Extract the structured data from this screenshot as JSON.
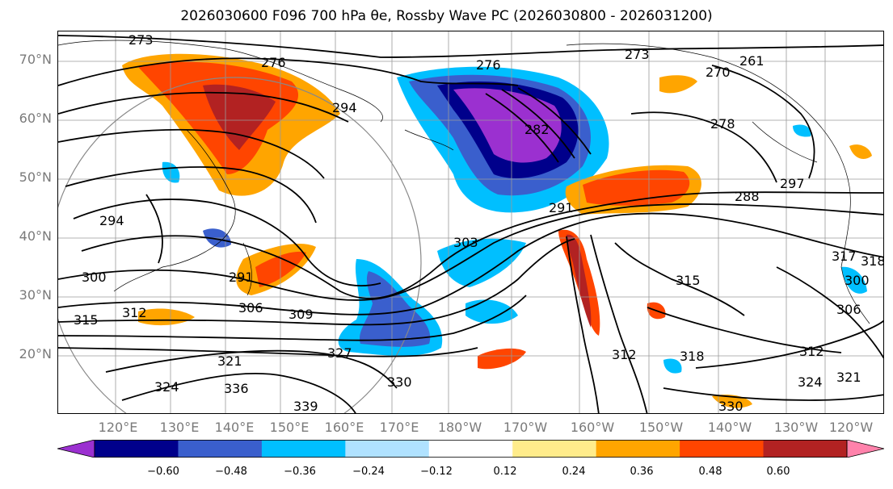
{
  "title": "2026030600 F096 700 hPa θe, Rossby Wave PC (2026030800 - 2026031200)",
  "lat_labels": [
    "70°N",
    "60°N",
    "50°N",
    "40°N",
    "30°N",
    "20°N"
  ],
  "lon_labels": [
    "120°E",
    "130°E",
    "140°E",
    "150°E",
    "160°E",
    "170°E",
    "180°W",
    "170°W",
    "160°W",
    "150°W",
    "140°W",
    "130°W",
    "120°W"
  ],
  "colorbar": {
    "colors": [
      "#9b30d0",
      "#00008b",
      "#3a5fcd",
      "#00bfff",
      "#b0e2ff",
      "#ffffff",
      "#ffec8b",
      "#ffa500",
      "#ff4500",
      "#b22222",
      "#ff82ab"
    ],
    "tick_labels": [
      "−0.60",
      "−0.48",
      "−0.36",
      "−0.24",
      "−0.12",
      "0.12",
      "0.24",
      "0.36",
      "0.48",
      "0.60"
    ]
  },
  "contour_labels": [
    "273",
    "276",
    "273",
    "270",
    "261",
    "294",
    "282",
    "276",
    "278",
    "288",
    "291",
    "294",
    "300",
    "303",
    "291",
    "315",
    "306",
    "309",
    "312",
    "315",
    "317",
    "318",
    "306",
    "300",
    "321",
    "327",
    "330",
    "324",
    "336",
    "312",
    "318",
    "324",
    "321",
    "330",
    "339",
    "312",
    "297"
  ]
}
